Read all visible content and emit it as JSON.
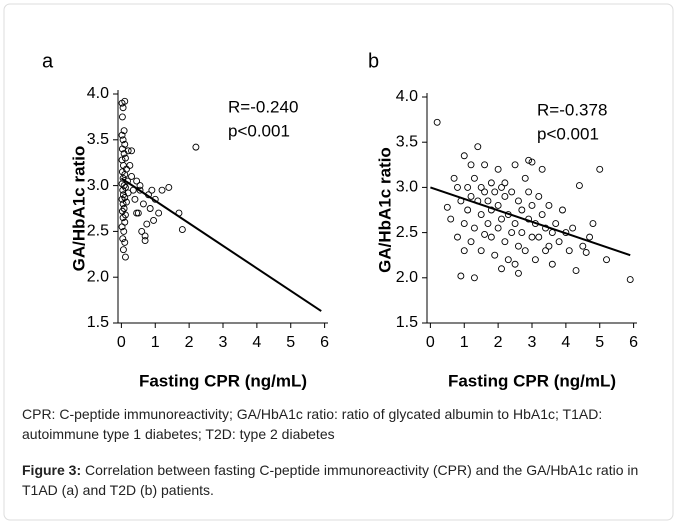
{
  "chart_data": [
    {
      "type": "scatter",
      "panel_label": "a",
      "x_label": "Fasting CPR (ng/mL)",
      "y_label": "GA/HbA1c ratio",
      "annotations": [
        "R=-0.240",
        "p<0.001"
      ],
      "xlim": [
        -0.1,
        6.1
      ],
      "xticks": [
        0,
        1,
        2,
        3,
        4,
        5,
        6
      ],
      "ylim": [
        1.5,
        4.0
      ],
      "yticks": [
        {
          "value": 4.0,
          "label": "4.0"
        },
        3.5,
        {
          "value": 3.0,
          "label": "3.0"
        },
        2.5,
        {
          "value": 2.0,
          "label": "2.0"
        },
        1.5
      ],
      "color": "#000000",
      "x": [
        0.02,
        0.05,
        0.1,
        0.03,
        0.08,
        0.02,
        0.05,
        0.1,
        0.03,
        0.08,
        0.12,
        0.02,
        0.06,
        0.15,
        0.03,
        0.1,
        0.05,
        0.18,
        0.02,
        0.08,
        0.12,
        0.04,
        0.2,
        0.06,
        0.1,
        0.02,
        0.15,
        0.05,
        0.08,
        0.03,
        0.12,
        0.05,
        0.1,
        0.02,
        0.07,
        0.04,
        0.1,
        0.06,
        0.12,
        0.2,
        0.25,
        0.3,
        0.3,
        0.35,
        0.4,
        0.45,
        0.5,
        0.55,
        0.6,
        0.65,
        0.7,
        0.75,
        0.8,
        0.85,
        0.9,
        1.0,
        1.1,
        0.7,
        1.2,
        1.4,
        1.7,
        1.8,
        2.2,
        0.45,
        0.55,
        0.95
      ],
      "values": [
        3.9,
        3.85,
        3.92,
        3.75,
        3.6,
        3.55,
        3.5,
        3.45,
        3.4,
        3.35,
        3.3,
        3.28,
        3.22,
        3.18,
        3.15,
        3.12,
        3.08,
        3.05,
        3.02,
        3.0,
        2.98,
        2.95,
        2.92,
        2.9,
        2.87,
        2.85,
        2.82,
        2.8,
        2.75,
        2.72,
        2.68,
        2.65,
        2.6,
        2.55,
        2.5,
        2.42,
        2.38,
        2.3,
        2.22,
        3.38,
        3.22,
        3.1,
        3.38,
        2.95,
        2.85,
        3.05,
        2.7,
        2.95,
        2.5,
        2.8,
        2.45,
        2.58,
        2.9,
        2.75,
        2.95,
        2.85,
        2.7,
        2.4,
        2.95,
        2.98,
        2.7,
        2.52,
        3.42,
        2.7,
        3.0,
        2.62
      ],
      "trendline": {
        "x": [
          0,
          5.9
        ],
        "values": [
          3.08,
          1.63
        ]
      }
    },
    {
      "type": "scatter",
      "panel_label": "b",
      "x_label": "Fasting CPR (ng/mL)",
      "y_label": "GA/HbA1c ratio",
      "annotations": [
        "R=-0.378",
        "p<0.001"
      ],
      "xlim": [
        -0.1,
        6.1
      ],
      "xticks": [
        0,
        1,
        2,
        3,
        4,
        5,
        6
      ],
      "ylim": [
        1.5,
        4.0
      ],
      "yticks": [
        {
          "value": 4.0,
          "label": "4.0"
        },
        3.5,
        {
          "value": 3.0,
          "label": "3.0"
        },
        2.5,
        {
          "value": 2.0,
          "label": "2.0"
        },
        1.5
      ],
      "color": "#000000",
      "x": [
        0.2,
        0.5,
        0.6,
        0.7,
        0.8,
        0.9,
        0.9,
        1.0,
        1.0,
        1.1,
        1.1,
        1.2,
        1.2,
        1.2,
        1.3,
        1.3,
        1.4,
        1.4,
        1.5,
        1.5,
        1.5,
        1.6,
        1.6,
        1.7,
        1.7,
        1.8,
        1.8,
        1.8,
        1.9,
        1.9,
        2.0,
        2.0,
        2.0,
        2.1,
        2.1,
        2.2,
        2.2,
        2.2,
        2.3,
        2.3,
        2.4,
        2.4,
        2.5,
        2.5,
        2.5,
        2.6,
        2.6,
        2.7,
        2.7,
        2.8,
        2.8,
        2.9,
        2.9,
        3.0,
        3.0,
        3.0,
        3.1,
        3.1,
        3.2,
        3.2,
        3.3,
        3.3,
        3.4,
        3.4,
        3.5,
        3.6,
        3.6,
        3.7,
        3.8,
        3.9,
        4.0,
        4.1,
        4.2,
        4.3,
        4.4,
        4.5,
        4.6,
        4.8,
        5.0,
        5.2,
        5.9,
        1.0,
        1.3,
        2.6,
        3.5,
        1.6,
        2.1,
        2.9,
        0.8,
        4.7
      ],
      "values": [
        3.72,
        2.78,
        2.65,
        3.1,
        2.45,
        2.02,
        2.85,
        3.35,
        2.6,
        3.0,
        2.75,
        3.25,
        2.9,
        2.4,
        3.1,
        2.55,
        2.85,
        3.45,
        2.7,
        3.0,
        2.3,
        2.95,
        3.25,
        2.6,
        2.85,
        3.05,
        2.45,
        2.75,
        2.95,
        2.25,
        2.8,
        3.2,
        2.55,
        2.1,
        2.65,
        2.9,
        3.05,
        2.4,
        2.7,
        2.2,
        2.95,
        2.5,
        2.6,
        3.25,
        2.15,
        2.85,
        2.35,
        2.75,
        2.5,
        3.1,
        2.3,
        2.65,
        2.95,
        2.45,
        2.8,
        3.28,
        2.2,
        2.6,
        2.9,
        2.45,
        2.7,
        3.2,
        2.55,
        2.3,
        2.8,
        2.5,
        2.15,
        2.6,
        2.4,
        2.75,
        2.5,
        2.3,
        2.55,
        2.08,
        3.02,
        2.35,
        2.28,
        2.6,
        3.2,
        2.2,
        1.98,
        2.3,
        2.0,
        2.05,
        2.35,
        2.48,
        3.0,
        3.3,
        3.0,
        2.45
      ],
      "trendline": {
        "x": [
          0,
          5.9
        ],
        "values": [
          3.0,
          2.25
        ]
      }
    }
  ],
  "note": "CPR: C-peptide immunoreactivity; GA/HbA1c ratio: ratio of glycated albumin to HbA1c; T1AD: autoimmune type 1 diabetes; T2D: type 2 diabetes",
  "caption": {
    "label": "Figure 3:",
    "text": "Correlation between fasting C-peptide immunoreactivity (CPR) and the GA/HbA1c ratio in T1AD (a) and T2D (b) patients."
  }
}
